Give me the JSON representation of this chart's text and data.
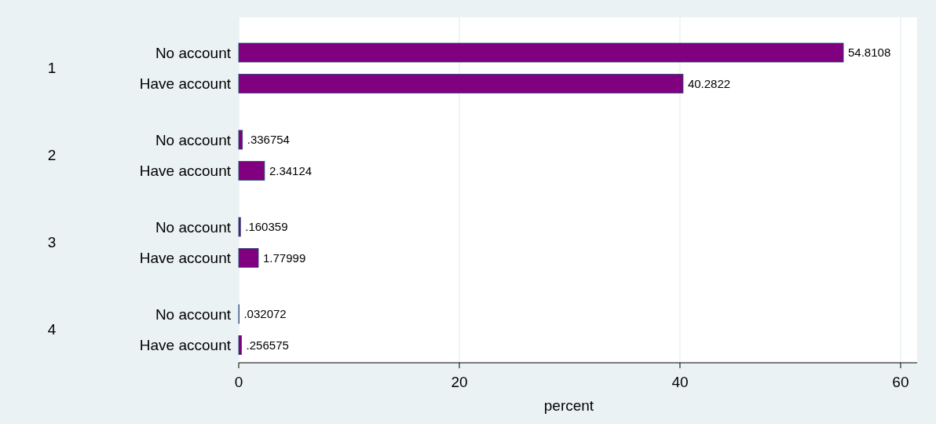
{
  "chart_data": {
    "type": "bar",
    "orientation": "horizontal",
    "xlabel": "percent",
    "categories": [
      "No account",
      "Have account",
      "No account",
      "Have account",
      "No account",
      "Have account",
      "No account",
      "Have account"
    ],
    "values": [
      54.8108,
      40.2822,
      0.336754,
      2.34124,
      0.160359,
      1.77999,
      0.032072,
      0.256575
    ],
    "value_labels": [
      "54.8108",
      "40.2822",
      ".336754",
      "2.34124",
      ".160359",
      "1.77999",
      ".032072",
      ".256575"
    ],
    "color": "#800080",
    "annotations": [
      "1",
      "2",
      "3",
      "4"
    ],
    "xlim": [
      0,
      61.5
    ],
    "xticks": [
      0,
      20,
      40,
      60
    ],
    "grid": "x"
  }
}
